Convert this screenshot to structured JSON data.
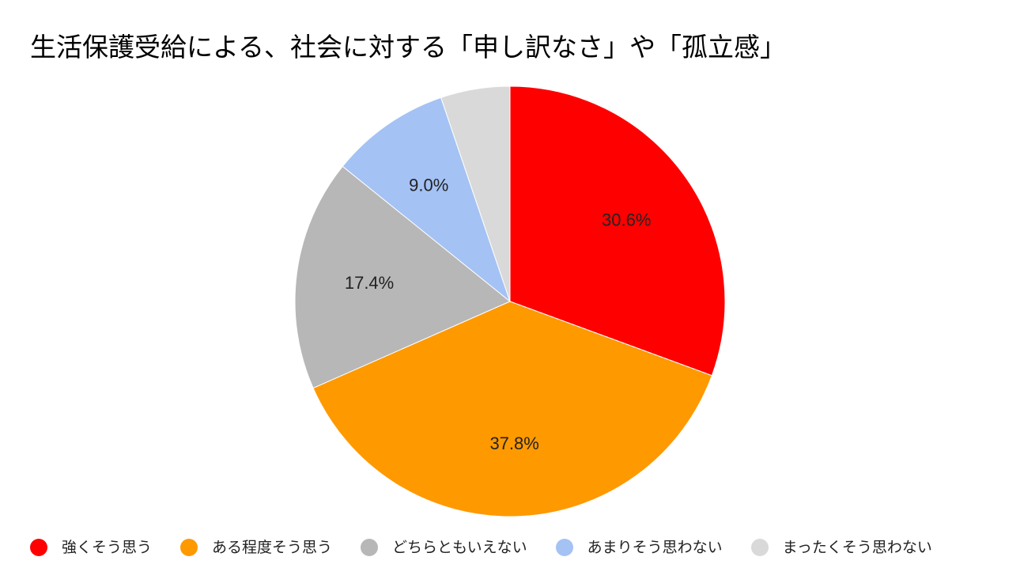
{
  "chart_data": {
    "type": "pie",
    "title": "生活保護受給による、社会に対する「申し訳なさ」や「孤立感」",
    "categories": [
      "強くそう思う",
      "ある程度そう思う",
      "どちらともいえない",
      "あまりそう思わない",
      "まったくそう思わない"
    ],
    "values": [
      30.6,
      37.8,
      17.4,
      9.0,
      5.2
    ],
    "data_labels": [
      "30.6%",
      "37.8%",
      "17.4%",
      "9.0%",
      ""
    ],
    "colors": [
      "#ff0000",
      "#ff9900",
      "#b7b7b7",
      "#a4c2f4",
      "#d9d9d9"
    ],
    "start_angle": "12 o'clock",
    "direction": "clockwise",
    "legend_position": "bottom"
  }
}
